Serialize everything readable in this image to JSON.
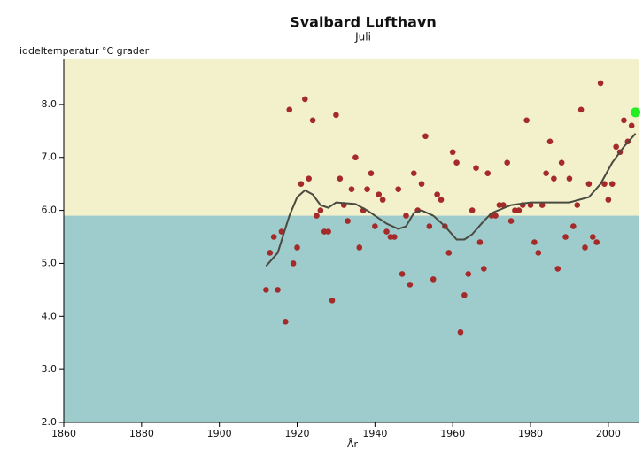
{
  "chart_data": {
    "type": "scatter",
    "title": "Svalbard Lufthavn",
    "subtitle": "Juli",
    "y_label": "iddeltemperatur °C grader",
    "x_label": "År",
    "xlim": [
      1860,
      2008
    ],
    "ylim": [
      2,
      8.85
    ],
    "xticks": [
      1860,
      1880,
      1900,
      1920,
      1940,
      1960,
      1980,
      2000
    ],
    "yticks": [
      {
        "value": 2,
        "label": "2.0"
      },
      {
        "value": 3,
        "label": "3.0"
      },
      {
        "value": 4,
        "label": "4.0"
      },
      {
        "value": 5,
        "label": "5.0"
      },
      {
        "value": 6,
        "label": "6.0"
      },
      {
        "value": 7,
        "label": "7.0"
      },
      {
        "value": 8,
        "label": "8.0"
      }
    ],
    "band_split": 5.9,
    "band_colors": [
      "#9ecbcc",
      "#f3f1cc"
    ],
    "points": {
      "color": "#a52a2a",
      "x": [
        1912,
        1913,
        1914,
        1915,
        1916,
        1917,
        1918,
        1919,
        1920,
        1921,
        1922,
        1923,
        1924,
        1925,
        1926,
        1927,
        1928,
        1929,
        1930,
        1931,
        1932,
        1933,
        1934,
        1935,
        1936,
        1937,
        1938,
        1939,
        1940,
        1941,
        1942,
        1943,
        1944,
        1945,
        1946,
        1947,
        1948,
        1949,
        1950,
        1951,
        1952,
        1953,
        1954,
        1955,
        1956,
        1957,
        1958,
        1959,
        1960,
        1961,
        1962,
        1963,
        1964,
        1965,
        1966,
        1967,
        1968,
        1969,
        1970,
        1971,
        1972,
        1973,
        1974,
        1975,
        1976,
        1977,
        1978,
        1979,
        1980,
        1981,
        1982,
        1983,
        1984,
        1985,
        1986,
        1987,
        1988,
        1989,
        1990,
        1991,
        1992,
        1993,
        1994,
        1995,
        1996,
        1997,
        1998,
        1999,
        2000,
        2001,
        2002,
        2003,
        2004,
        2005,
        2006
      ],
      "values": [
        4.5,
        5.2,
        5.5,
        4.5,
        5.6,
        3.9,
        7.9,
        5.0,
        5.3,
        6.5,
        8.1,
        6.6,
        7.7,
        5.9,
        6.0,
        5.6,
        5.6,
        4.3,
        7.8,
        6.6,
        6.1,
        5.8,
        6.4,
        7.0,
        5.3,
        6.0,
        6.4,
        6.7,
        5.7,
        6.3,
        6.2,
        5.6,
        5.5,
        5.5,
        6.4,
        4.8,
        5.9,
        4.6,
        6.7,
        6.0,
        6.5,
        7.4,
        5.7,
        4.7,
        6.3,
        6.2,
        5.7,
        5.2,
        7.1,
        6.9,
        3.7,
        4.4,
        4.8,
        6.0,
        6.8,
        5.4,
        4.9,
        6.7,
        5.9,
        5.9,
        6.1,
        6.1,
        6.9,
        5.8,
        6.0,
        6.0,
        6.1,
        7.7,
        6.1,
        5.4,
        5.2,
        6.1,
        6.7,
        7.3,
        6.6,
        4.9,
        6.9,
        5.5,
        6.6,
        5.7,
        6.1,
        7.9,
        5.3,
        6.5,
        5.5,
        5.4,
        8.4,
        6.5,
        6.2,
        6.5,
        7.2,
        7.1,
        7.7,
        7.3,
        7.6
      ]
    },
    "highlight": {
      "color": "#22ee22",
      "x": [
        2007
      ],
      "values": [
        7.85
      ]
    },
    "trend": {
      "color": "#4a4a40",
      "x": [
        1912,
        1915,
        1918,
        1920,
        1922,
        1924,
        1926,
        1928,
        1930,
        1935,
        1938,
        1940,
        1943,
        1946,
        1948,
        1950,
        1952,
        1955,
        1958,
        1961,
        1963,
        1965,
        1968,
        1970,
        1975,
        1980,
        1985,
        1990,
        1995,
        1998,
        2001,
        2004,
        2007
      ],
      "values": [
        4.95,
        5.2,
        5.9,
        6.25,
        6.38,
        6.3,
        6.1,
        6.05,
        6.15,
        6.12,
        6.0,
        5.9,
        5.75,
        5.65,
        5.7,
        5.95,
        6.0,
        5.9,
        5.7,
        5.45,
        5.45,
        5.55,
        5.8,
        5.95,
        6.1,
        6.15,
        6.15,
        6.15,
        6.25,
        6.5,
        6.9,
        7.2,
        7.45
      ]
    }
  }
}
